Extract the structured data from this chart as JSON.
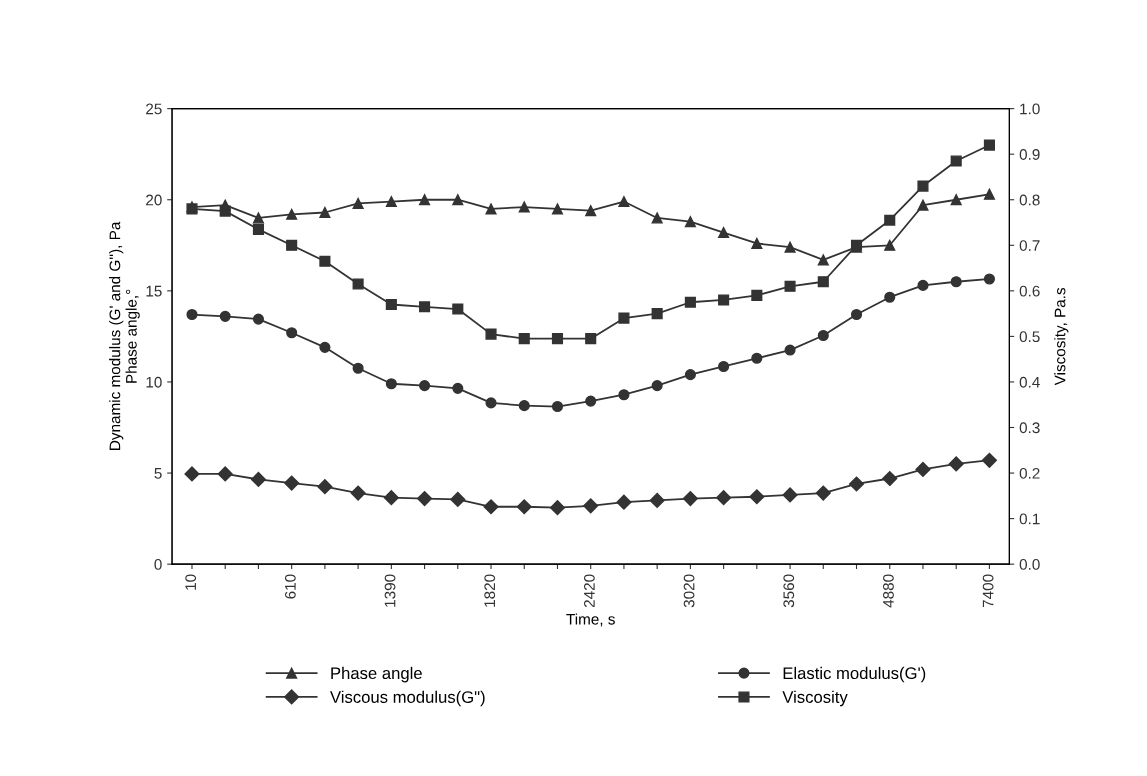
{
  "chart_data": {
    "type": "line",
    "categories": [
      "10",
      null,
      null,
      "610",
      null,
      null,
      "1390",
      null,
      null,
      "1820",
      null,
      null,
      "2420",
      null,
      null,
      "3020",
      null,
      null,
      "3560",
      null,
      null,
      "4880",
      null,
      null,
      "7400"
    ],
    "xlabel": "Time, s",
    "ylabel": "Dynamic modulus (G' and G''), Pa\nPhase angle,°",
    "y2label": "Viscosity, Pa.s",
    "ylim": [
      0,
      25
    ],
    "yticks": [
      0,
      5,
      10,
      15,
      20,
      25
    ],
    "y2lim": [
      0,
      1
    ],
    "y2ticks": [
      {
        "value": 0,
        "label": "0.0"
      },
      {
        "value": 0.1,
        "label": "0.1"
      },
      {
        "value": 0.2,
        "label": "0.2"
      },
      {
        "value": 0.3,
        "label": "0.3"
      },
      {
        "value": 0.4,
        "label": "0.4"
      },
      {
        "value": 0.5,
        "label": "0.5"
      },
      {
        "value": 0.6,
        "label": "0.6"
      },
      {
        "value": 0.7,
        "label": "0.7"
      },
      {
        "value": 0.8,
        "label": "0.8"
      },
      {
        "value": 0.9,
        "label": "0.9"
      },
      {
        "value": 1,
        "label": "1.0"
      }
    ],
    "grid": false,
    "legend": "bottom",
    "line_style": "solid",
    "series": [
      {
        "name": "Phase angle",
        "color": "#333333",
        "marker": "triangle",
        "values": [
          19.6,
          19.7,
          19.0,
          19.2,
          19.3,
          19.8,
          19.9,
          20.0,
          20.0,
          19.5,
          19.6,
          19.5,
          19.4,
          19.9,
          19.0,
          18.8,
          18.2,
          17.6,
          17.4,
          16.7,
          17.4,
          17.5,
          19.7,
          20.0,
          20.3
        ]
      },
      {
        "name": "Elastic modulus(G')",
        "color": "#333333",
        "marker": "circle",
        "values": [
          13.7,
          13.6,
          13.45,
          12.7,
          11.9,
          10.75,
          9.9,
          9.8,
          9.65,
          8.85,
          8.7,
          8.65,
          8.95,
          9.3,
          9.8,
          10.4,
          10.85,
          11.3,
          11.75,
          12.55,
          13.7,
          14.65,
          15.3,
          15.5,
          15.65
        ]
      },
      {
        "name": "Viscous modulus(G\")",
        "color": "#333333",
        "marker": "diamond",
        "values": [
          4.95,
          4.95,
          4.65,
          4.45,
          4.25,
          3.9,
          3.65,
          3.6,
          3.55,
          3.15,
          3.15,
          3.1,
          3.2,
          3.4,
          3.5,
          3.6,
          3.65,
          3.7,
          3.8,
          3.9,
          4.4,
          4.7,
          5.2,
          5.5,
          5.7
        ]
      },
      {
        "name": "Viscosity",
        "color": "#333333",
        "marker": "square",
        "axis": "y2",
        "values": [
          0.78,
          0.775,
          0.735,
          0.7,
          0.665,
          0.615,
          0.57,
          0.565,
          0.56,
          0.505,
          0.495,
          0.495,
          0.495,
          0.54,
          0.55,
          0.575,
          0.58,
          0.59,
          0.61,
          0.62,
          0.7,
          0.755,
          0.83,
          0.885,
          0.92
        ]
      }
    ]
  }
}
